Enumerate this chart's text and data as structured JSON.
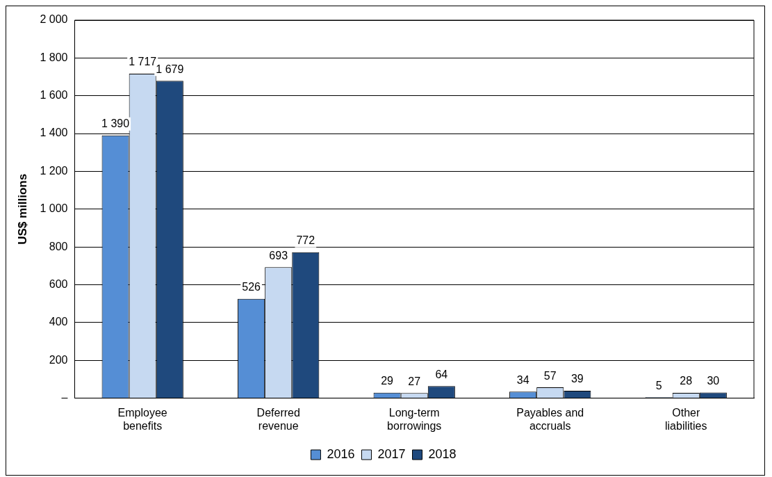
{
  "chart_data": {
    "type": "bar",
    "ylabel": "US$ millions",
    "categories": [
      "Employee\nbenefits",
      "Deferred\nrevenue",
      "Long-term\nborrowings",
      "Payables and\naccruals",
      "Other\nliabilities"
    ],
    "series": [
      {
        "name": "2016",
        "color": "#558ed5",
        "values": [
          1390,
          526,
          29,
          34,
          5
        ],
        "value_labels": [
          "1 390",
          "526",
          "29",
          "34",
          "5"
        ]
      },
      {
        "name": "2017",
        "color": "#c6d9f1",
        "values": [
          1717,
          693,
          27,
          57,
          28
        ],
        "value_labels": [
          "1 717",
          "693",
          "27",
          "57",
          "28"
        ]
      },
      {
        "name": "2018",
        "color": "#1f497d",
        "values": [
          1679,
          772,
          64,
          39,
          30
        ],
        "value_labels": [
          "1 679",
          "772",
          "64",
          "39",
          "30"
        ]
      }
    ],
    "ylim": [
      0,
      2000
    ],
    "yticks": [
      {
        "value": 0,
        "label": "–"
      },
      {
        "value": 200,
        "label": "200"
      },
      {
        "value": 400,
        "label": "400"
      },
      {
        "value": 600,
        "label": "600"
      },
      {
        "value": 800,
        "label": "800"
      },
      {
        "value": 1000,
        "label": "1 000"
      },
      {
        "value": 1200,
        "label": "1 200"
      },
      {
        "value": 1400,
        "label": "1 400"
      },
      {
        "value": 1600,
        "label": "1 600"
      },
      {
        "value": 1800,
        "label": "1 800"
      },
      {
        "value": 2000,
        "label": "2 000"
      }
    ],
    "grid": "y",
    "legend": "bottom"
  }
}
